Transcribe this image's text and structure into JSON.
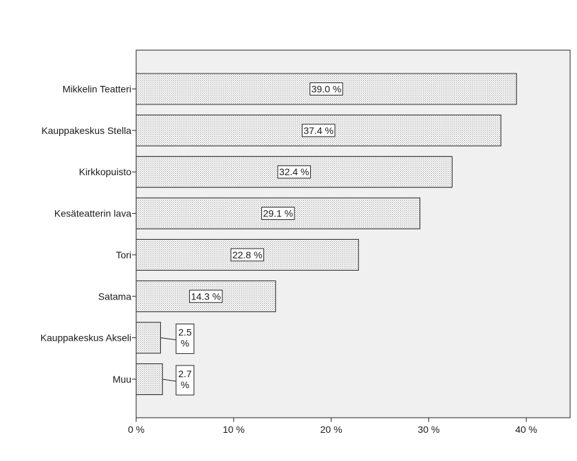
{
  "chart_data": {
    "type": "bar",
    "orientation": "horizontal",
    "categories": [
      "Mikkelin Teatteri",
      "Kauppakeskus Stella",
      "Kirkkopuisto",
      "Kesäteatterin lava",
      "Tori",
      "Satama",
      "Kauppakeskus Akseli",
      "Muu"
    ],
    "values": [
      39.0,
      37.4,
      32.4,
      29.1,
      22.8,
      14.3,
      2.5,
      2.7
    ],
    "data_labels": [
      "39.0 %",
      "37.4 %",
      "32.4 %",
      "29.1 %",
      "22.8 %",
      "14.3 %",
      "2.5 %",
      "2.7 %"
    ],
    "xticks": [
      0,
      10,
      20,
      30,
      40
    ],
    "xtick_labels": [
      "0 %",
      "10 %",
      "20 %",
      "30 %",
      "40 %"
    ],
    "xlim": [
      0,
      44.5
    ],
    "title": "",
    "xlabel": "",
    "ylabel": "",
    "grid": false,
    "legend": "none",
    "colors": {
      "plot_background": "#f0f0f0",
      "bar_fill": "#ffffff",
      "bar_pattern_dot": "#8a8a8a",
      "bar_stroke": "#222222",
      "label_box_fill": "#ffffff"
    }
  }
}
